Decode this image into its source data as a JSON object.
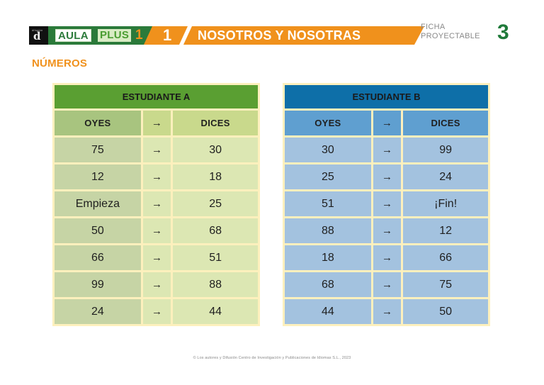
{
  "header": {
    "publisher_small": "difusión",
    "publisher_logo": "d",
    "brand_aula": "AULA",
    "brand_plus": "PLUS",
    "level": "1",
    "unit_number": "1",
    "unit_title": "NOSOTROS Y NOSOTRAS",
    "ficha_line1": "FICHA",
    "ficha_line2": "PROYECTABLE",
    "ficha_number": "3"
  },
  "section_title": "NÚMEROS",
  "colors": {
    "brand_green": "#2b7a3a",
    "accent_orange": "#f0911c",
    "table_a_header": "#5a9f32",
    "table_b_header": "#0e6fa8",
    "table_border": "#fdf0bd"
  },
  "table_a": {
    "title": "ESTUDIANTE A",
    "columns": [
      "OYES",
      "→",
      "DICES"
    ],
    "rows": [
      [
        "75",
        "→",
        "30"
      ],
      [
        "12",
        "→",
        "18"
      ],
      [
        "Empieza",
        "→",
        "25"
      ],
      [
        "50",
        "→",
        "68"
      ],
      [
        "66",
        "→",
        "51"
      ],
      [
        "99",
        "→",
        "88"
      ],
      [
        "24",
        "→",
        "44"
      ]
    ]
  },
  "table_b": {
    "title": "ESTUDIANTE B",
    "columns": [
      "OYES",
      "→",
      "DICES"
    ],
    "rows": [
      [
        "30",
        "→",
        "99"
      ],
      [
        "25",
        "→",
        "24"
      ],
      [
        "51",
        "→",
        "¡Fin!"
      ],
      [
        "88",
        "→",
        "12"
      ],
      [
        "18",
        "→",
        "66"
      ],
      [
        "68",
        "→",
        "75"
      ],
      [
        "44",
        "→",
        "50"
      ]
    ]
  },
  "footer": "© Los autores y Difusión Centro de Investigación y Publicaciones de Idiomas S.L., 2023"
}
